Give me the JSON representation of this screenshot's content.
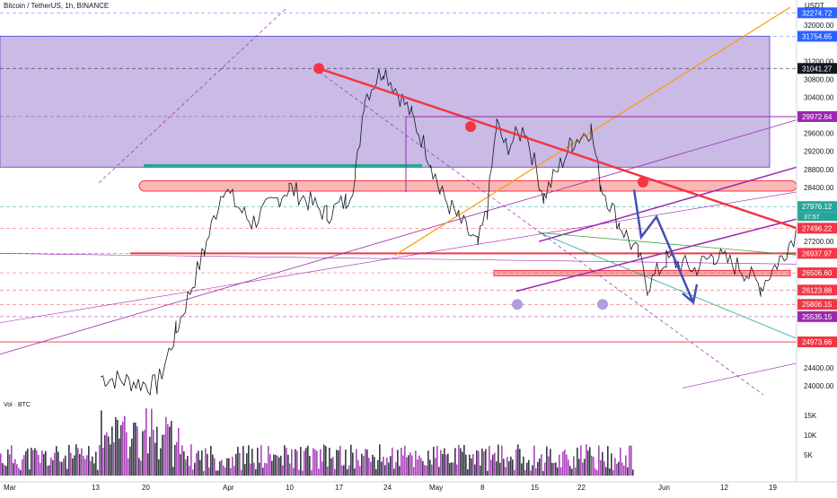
{
  "chart_title": "Bitcoin / TetherUS, 1h, BINANCE",
  "volume_label": "Vol · BTC",
  "currency": "USDT",
  "chart_data": {
    "type": "line",
    "ylim": [
      23800,
      32400
    ],
    "y_ticks": [
      32000,
      31200,
      30800,
      30400,
      29600,
      29200,
      28800,
      28400,
      27200,
      24400,
      24000
    ],
    "x_ticks": [
      "Mar",
      "13",
      "20",
      "Apr",
      "10",
      "17",
      "24",
      "May",
      "8",
      "15",
      "22",
      "Jun",
      "12",
      "19"
    ],
    "price_labels": [
      {
        "value": 32274.72,
        "label": "32274.72",
        "color": "#2962ff"
      },
      {
        "value": 31754.65,
        "label": "31754.65",
        "color": "#2962ff"
      },
      {
        "value": 31041.27,
        "label": "31041.27",
        "color": "#131722"
      },
      {
        "value": 29972.64,
        "label": "29972.64",
        "color": "#9c27b0"
      },
      {
        "value": 27976.12,
        "label": "27976.12",
        "color": "#26a69a",
        "sub": "37:57"
      },
      {
        "value": 27496.22,
        "label": "27496.22",
        "color": "#f23645"
      },
      {
        "value": 26937.97,
        "label": "26937.97",
        "color": "#f23645"
      },
      {
        "value": 26506.6,
        "label": "26506.60",
        "color": "#f23645"
      },
      {
        "value": 26123.88,
        "label": "26123.88",
        "color": "#f23645"
      },
      {
        "value": 25806.15,
        "label": "25806.15",
        "color": "#f23645"
      },
      {
        "value": 25535.15,
        "label": "25535.15",
        "color": "#9c27b0"
      },
      {
        "value": 24973.66,
        "label": "24973.66",
        "color": "#f23645"
      }
    ],
    "volume_ticks": [
      "15K",
      "10K",
      "5K"
    ],
    "price_series_keypoints": [
      [
        0,
        24200
      ],
      [
        6,
        24000
      ],
      [
        8,
        25200
      ],
      [
        11,
        27000
      ],
      [
        13,
        28400
      ],
      [
        16,
        27600
      ],
      [
        20,
        28400
      ],
      [
        24,
        27800
      ],
      [
        26,
        28100
      ],
      [
        27,
        28600
      ],
      [
        28,
        30400
      ],
      [
        30,
        31041
      ],
      [
        33,
        30000
      ],
      [
        35,
        29000
      ],
      [
        36,
        28300
      ],
      [
        38,
        27700
      ],
      [
        40,
        27100
      ],
      [
        41,
        27900
      ],
      [
        42,
        29800
      ],
      [
        43,
        29300
      ],
      [
        45,
        29700
      ],
      [
        47,
        28200
      ],
      [
        50,
        29400
      ],
      [
        52,
        29700
      ],
      [
        53,
        28500
      ],
      [
        55,
        27600
      ],
      [
        57,
        26900
      ],
      [
        58,
        26200
      ],
      [
        60,
        26800
      ],
      [
        63,
        26600
      ],
      [
        65,
        26900
      ],
      [
        68,
        26600
      ],
      [
        70,
        26200
      ],
      [
        72,
        26800
      ],
      [
        74,
        27500
      ],
      [
        75,
        28300
      ],
      [
        76,
        27976
      ]
    ],
    "projection": [
      [
        76,
        27976
      ],
      [
        78,
        27200
      ],
      [
        82,
        25900
      ]
    ],
    "colors": {
      "up": "#26a69a",
      "down": "#ef5350",
      "zone": "#b39ddb",
      "trend": "#f23645",
      "channel": "#9c27b0",
      "orange": "#ff9800"
    }
  }
}
